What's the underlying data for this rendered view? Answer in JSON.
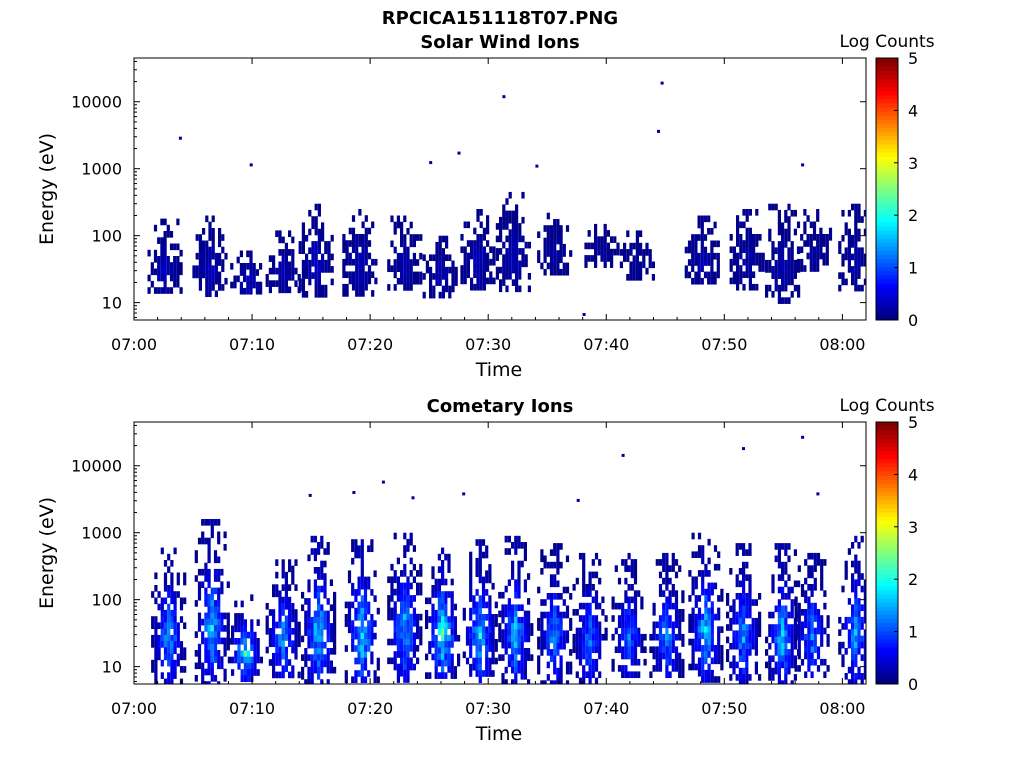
{
  "figure_title": "RPCICA151118T07.PNG",
  "chart_data": [
    {
      "type": "heatmap",
      "title": "Solar Wind Ions",
      "xlabel": "Time",
      "ylabel": "Energy (eV)",
      "x_range": [
        "07:00",
        "08:02"
      ],
      "y_scale": "log",
      "y_range": [
        5.5,
        45000
      ],
      "x_ticks": [
        "07:00",
        "07:10",
        "07:20",
        "07:30",
        "07:40",
        "07:50",
        "08:00"
      ],
      "y_ticks": [
        "10",
        "100",
        "1000",
        "10000"
      ],
      "colorbar": {
        "label": "Log Counts",
        "range": [
          0,
          5
        ],
        "ticks": [
          "0",
          "1",
          "2",
          "3",
          "4",
          "5"
        ],
        "colormap": "jet"
      },
      "bursts": [
        {
          "t": "07:02.5",
          "e_min": 14,
          "e_max": 180,
          "peak": 0.35
        },
        {
          "t": "07:06.3",
          "e_min": 14,
          "e_max": 200,
          "peak": 0.35
        },
        {
          "t": "07:09.5",
          "e_min": 14,
          "e_max": 60,
          "peak": 0.4
        },
        {
          "t": "07:12.5",
          "e_min": 16,
          "e_max": 120,
          "peak": 0.3
        },
        {
          "t": "07:15.3",
          "e_min": 14,
          "e_max": 300,
          "peak": 0.4
        },
        {
          "t": "07:19.0",
          "e_min": 14,
          "e_max": 250,
          "peak": 0.35
        },
        {
          "t": "07:22.8",
          "e_min": 16,
          "e_max": 200,
          "peak": 0.3
        },
        {
          "t": "07:25.8",
          "e_min": 14,
          "e_max": 100,
          "peak": 0.3
        },
        {
          "t": "07:29.0",
          "e_min": 18,
          "e_max": 250,
          "peak": 0.35
        },
        {
          "t": "07:32.0",
          "e_min": 16,
          "e_max": 450,
          "peak": 0.3
        },
        {
          "t": "07:35.5",
          "e_min": 30,
          "e_max": 220,
          "peak": 0.2
        },
        {
          "t": "07:39.5",
          "e_min": 40,
          "e_max": 150,
          "peak": 0.15
        },
        {
          "t": "07:42.5",
          "e_min": 25,
          "e_max": 120,
          "peak": 0.15
        },
        {
          "t": "07:48.0",
          "e_min": 20,
          "e_max": 200,
          "peak": 0.3
        },
        {
          "t": "07:51.8",
          "e_min": 18,
          "e_max": 250,
          "peak": 0.25
        },
        {
          "t": "07:54.8",
          "e_min": 12,
          "e_max": 300,
          "peak": 0.3
        },
        {
          "t": "07:57.5",
          "e_min": 30,
          "e_max": 250,
          "peak": 0.2
        },
        {
          "t": "08:01.0",
          "e_min": 18,
          "e_max": 300,
          "peak": 0.25
        }
      ],
      "isolated_points": [
        {
          "t": "07:03.8",
          "e": 3000
        },
        {
          "t": "07:09.8",
          "e": 1200
        },
        {
          "t": "07:25.0",
          "e": 1300
        },
        {
          "t": "07:27.4",
          "e": 1800
        },
        {
          "t": "07:31.2",
          "e": 12500
        },
        {
          "t": "07:34.0",
          "e": 1150
        },
        {
          "t": "07:44.3",
          "e": 3800
        },
        {
          "t": "07:44.6",
          "e": 20000
        },
        {
          "t": "07:56.5",
          "e": 1200
        },
        {
          "t": "07:38.0",
          "e": 7
        }
      ]
    },
    {
      "type": "heatmap",
      "title": "Cometary Ions",
      "xlabel": "Time",
      "ylabel": "Energy (eV)",
      "x_range": [
        "07:00",
        "08:02"
      ],
      "y_scale": "log",
      "y_range": [
        5.5,
        45000
      ],
      "x_ticks": [
        "07:00",
        "07:10",
        "07:20",
        "07:30",
        "07:40",
        "07:50",
        "08:00"
      ],
      "y_ticks": [
        "10",
        "100",
        "1000",
        "10000"
      ],
      "colorbar": {
        "label": "Log Counts",
        "range": [
          0,
          5
        ],
        "ticks": [
          "0",
          "1",
          "2",
          "3",
          "4",
          "5"
        ],
        "colormap": "jet"
      },
      "bursts": [
        {
          "t": "07:02.8",
          "e_min": 6,
          "e_max": 600,
          "peak": 1.6
        },
        {
          "t": "07:06.5",
          "e_min": 6,
          "e_max": 1600,
          "peak": 1.7
        },
        {
          "t": "07:09.3",
          "e_min": 6,
          "e_max": 120,
          "peak": 1.9
        },
        {
          "t": "07:12.5",
          "e_min": 7,
          "e_max": 400,
          "peak": 1.6
        },
        {
          "t": "07:15.5",
          "e_min": 6,
          "e_max": 900,
          "peak": 1.9
        },
        {
          "t": "07:19.2",
          "e_min": 6,
          "e_max": 800,
          "peak": 2.0
        },
        {
          "t": "07:22.8",
          "e_min": 7,
          "e_max": 1000,
          "peak": 1.7
        },
        {
          "t": "07:26.0",
          "e_min": 7,
          "e_max": 600,
          "peak": 2.2
        },
        {
          "t": "07:29.2",
          "e_min": 6,
          "e_max": 800,
          "peak": 1.8
        },
        {
          "t": "07:32.2",
          "e_min": 6,
          "e_max": 900,
          "peak": 1.7
        },
        {
          "t": "07:35.5",
          "e_min": 6,
          "e_max": 700,
          "peak": 1.4
        },
        {
          "t": "07:38.5",
          "e_min": 6,
          "e_max": 500,
          "peak": 1.3
        },
        {
          "t": "07:41.8",
          "e_min": 7,
          "e_max": 500,
          "peak": 1.3
        },
        {
          "t": "07:45.0",
          "e_min": 7,
          "e_max": 500,
          "peak": 1.4
        },
        {
          "t": "07:48.3",
          "e_min": 7,
          "e_max": 1000,
          "peak": 1.8
        },
        {
          "t": "07:51.5",
          "e_min": 6,
          "e_max": 700,
          "peak": 1.6
        },
        {
          "t": "07:54.8",
          "e_min": 6,
          "e_max": 700,
          "peak": 1.7
        },
        {
          "t": "07:57.3",
          "e_min": 7,
          "e_max": 500,
          "peak": 1.4
        },
        {
          "t": "08:01.0",
          "e_min": 6,
          "e_max": 900,
          "peak": 1.5
        }
      ],
      "isolated_points": [
        {
          "t": "07:14.8",
          "e": 3800
        },
        {
          "t": "07:18.5",
          "e": 4200
        },
        {
          "t": "07:21.0",
          "e": 6000
        },
        {
          "t": "07:23.5",
          "e": 3500
        },
        {
          "t": "07:27.8",
          "e": 4000
        },
        {
          "t": "07:41.3",
          "e": 15000
        },
        {
          "t": "07:51.5",
          "e": 19000
        },
        {
          "t": "07:56.5",
          "e": 28000
        },
        {
          "t": "07:57.8",
          "e": 4000
        },
        {
          "t": "07:37.5",
          "e": 3200
        }
      ]
    }
  ]
}
